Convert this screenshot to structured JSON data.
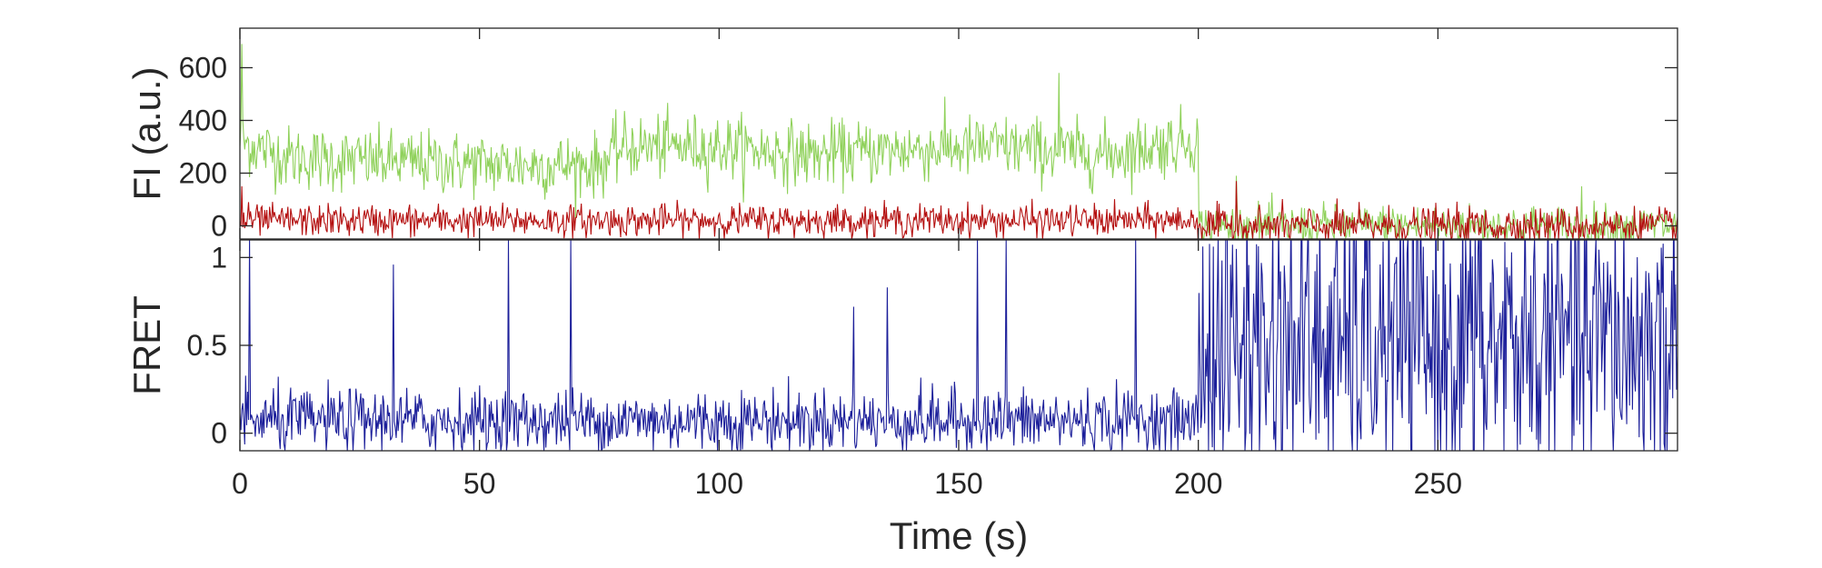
{
  "chart_data": [
    {
      "type": "line",
      "ylabel": "FI (a.u.)",
      "ylim": [
        -50,
        750
      ],
      "xlim": [
        0,
        300
      ],
      "yticks": [
        0,
        200,
        400,
        600
      ],
      "ytick_labels": [
        "0",
        "200",
        "400",
        "600"
      ],
      "grid": false,
      "series": [
        {
          "color": "#8fd15a",
          "segments": [
            {
              "t_start": 0,
              "t_end": 200,
              "mean_by_time": [
                [
                  0,
                  320
                ],
                [
                  10,
                  260
                ],
                [
                  20,
                  250
                ],
                [
                  40,
                  240
                ],
                [
                  60,
                  230
                ],
                [
                  75,
                  230
                ],
                [
                  80,
                  300
                ],
                [
                  100,
                  300
                ],
                [
                  120,
                  270
                ],
                [
                  140,
                  290
                ],
                [
                  160,
                  300
                ],
                [
                  180,
                  270
                ],
                [
                  200,
                  330
                ]
              ],
              "noise_sd": 60
            },
            {
              "t_start": 200,
              "t_end": 300,
              "mean": 0,
              "noise_sd": 40
            }
          ],
          "peaks": [
            [
              0.5,
              690
            ],
            [
              171,
              580
            ],
            [
              208,
              190
            ],
            [
              280,
              150
            ]
          ]
        },
        {
          "color": "#b40f0f",
          "segments": [
            {
              "t_start": 0,
              "t_end": 200,
              "mean": 20,
              "noise_sd": 30
            },
            {
              "t_start": 200,
              "t_end": 300,
              "mean": 0,
              "noise_sd": 35
            }
          ],
          "peaks": [
            [
              0.5,
              150
            ],
            [
              208,
              170
            ]
          ]
        }
      ]
    },
    {
      "type": "line",
      "xlabel": "Time (s)",
      "ylabel": "FRET",
      "xlim": [
        0,
        300
      ],
      "ylim": [
        -0.1,
        1.1
      ],
      "xticks": [
        0,
        50,
        100,
        150,
        200,
        250
      ],
      "xtick_labels": [
        "0",
        "50",
        "100",
        "150",
        "200",
        "250"
      ],
      "yticks": [
        0,
        0.5,
        1
      ],
      "ytick_labels": [
        "0",
        "0.5",
        "1"
      ],
      "grid": false,
      "series": [
        {
          "color": "#1c1f9a",
          "segments": [
            {
              "t_start": 0,
              "t_end": 200,
              "mean": 0.07,
              "noise_sd": 0.09
            },
            {
              "t_start": 200,
              "t_end": 300,
              "mean": 0.5,
              "noise_sd": 0.45
            }
          ],
          "spikes": [
            [
              2,
              1.1
            ],
            [
              32,
              0.96
            ],
            [
              56,
              1.1
            ],
            [
              69,
              1.1
            ],
            [
              128,
              0.72
            ],
            [
              135,
              0.83
            ],
            [
              154,
              1.1
            ],
            [
              160,
              1.1
            ],
            [
              187,
              1.1
            ]
          ]
        }
      ]
    }
  ]
}
